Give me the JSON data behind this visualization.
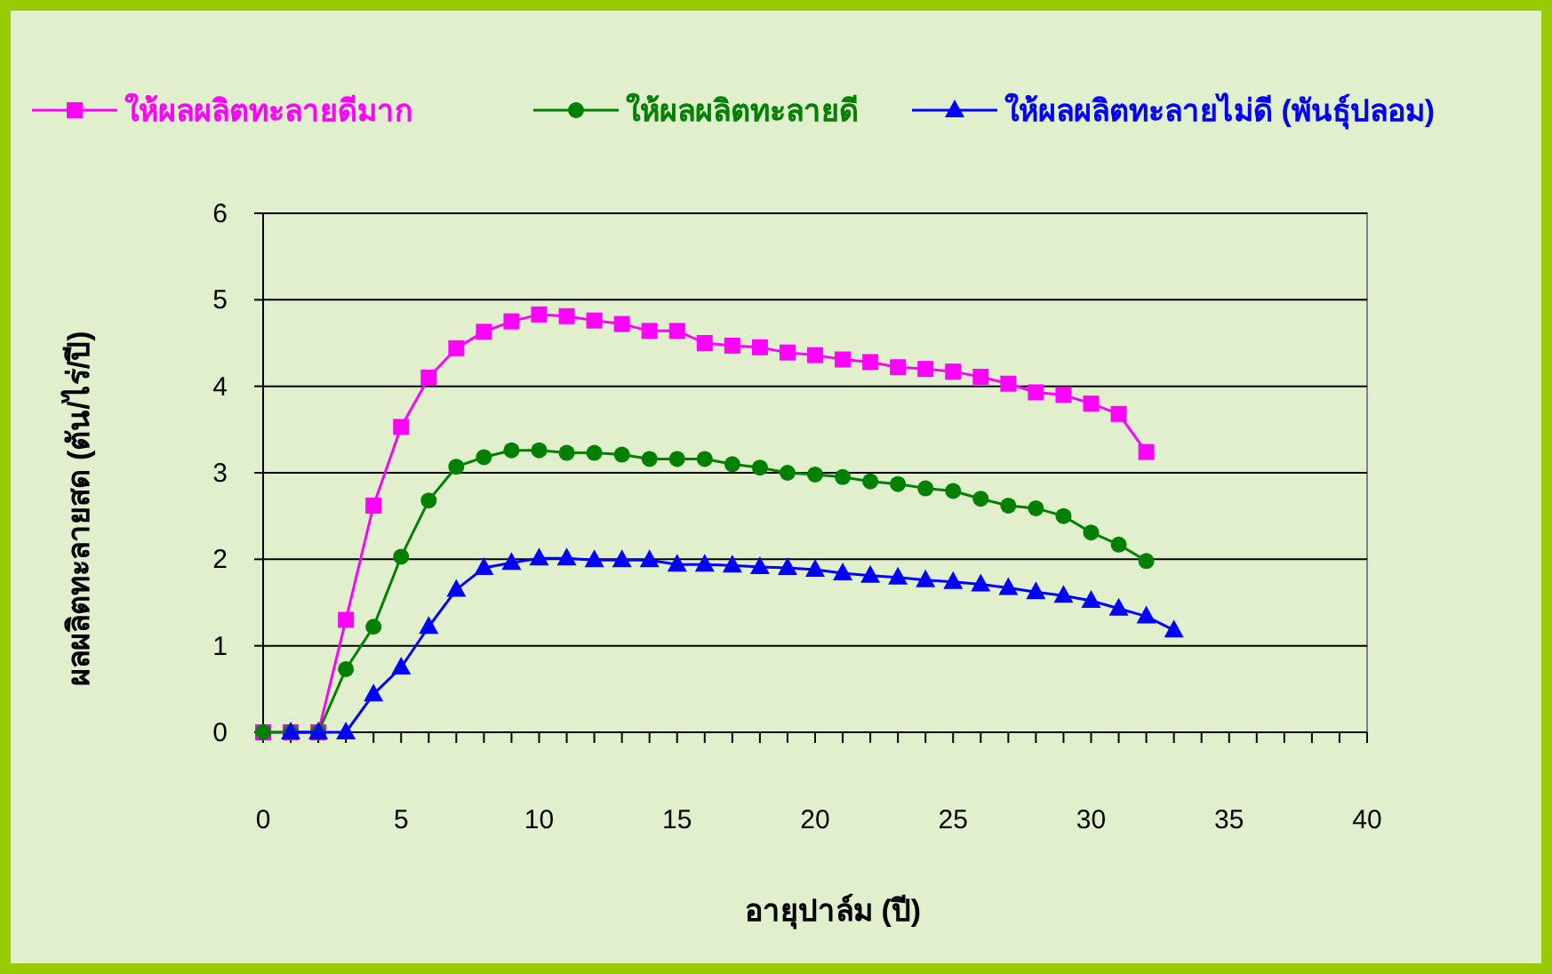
{
  "chart_data": {
    "type": "line",
    "xlabel": "อายุปาล์ม (ปี)",
    "ylabel": "ผลผลิตทะลายสด (ตัน/ไร่/ปี)",
    "x": [
      0,
      1,
      2,
      3,
      4,
      5,
      6,
      7,
      8,
      9,
      10,
      11,
      12,
      13,
      14,
      15,
      16,
      17,
      18,
      19,
      20,
      21,
      22,
      23,
      24,
      25,
      26,
      27,
      28,
      29,
      30,
      31,
      32
    ],
    "series": [
      {
        "name": "ให้ผลผลิตทะลายดีมาก",
        "color": "#ff00ff",
        "marker": "square",
        "values": [
          0,
          0,
          0,
          1.3,
          2.62,
          3.53,
          4.1,
          4.44,
          4.63,
          4.75,
          4.83,
          4.81,
          4.76,
          4.72,
          4.64,
          4.64,
          4.5,
          4.47,
          4.45,
          4.39,
          4.36,
          4.31,
          4.28,
          4.22,
          4.2,
          4.17,
          4.11,
          4.03,
          3.93,
          3.9,
          3.8,
          3.68,
          3.24
        ]
      },
      {
        "name": "ให้ผลผลิตทะลายดี",
        "color": "#008000",
        "marker": "circle",
        "values": [
          0,
          0,
          0,
          0.73,
          1.22,
          2.03,
          2.68,
          3.07,
          3.18,
          3.26,
          3.26,
          3.23,
          3.23,
          3.21,
          3.16,
          3.16,
          3.16,
          3.1,
          3.06,
          3.0,
          2.98,
          2.95,
          2.9,
          2.87,
          2.82,
          2.79,
          2.7,
          2.62,
          2.59,
          2.5,
          2.31,
          2.17,
          1.98
        ]
      },
      {
        "name": "ให้ผลผลิตทะลายไม่ดี (พันธุ์ปลอม)",
        "color": "#0000ff",
        "marker": "triangle",
        "x": [
          1,
          2,
          3,
          4,
          5,
          6,
          7,
          8,
          9,
          10,
          11,
          12,
          13,
          14,
          15,
          16,
          17,
          18,
          19,
          20,
          21,
          22,
          23,
          24,
          25,
          26,
          27,
          28,
          29,
          30,
          31,
          32,
          33
        ],
        "values": [
          0,
          0,
          0,
          0.44,
          0.75,
          1.22,
          1.65,
          1.9,
          1.96,
          2.01,
          2.01,
          1.99,
          1.99,
          1.99,
          1.94,
          1.94,
          1.93,
          1.91,
          1.9,
          1.88,
          1.84,
          1.81,
          1.79,
          1.76,
          1.74,
          1.71,
          1.67,
          1.62,
          1.58,
          1.52,
          1.43,
          1.34,
          1.18
        ]
      }
    ],
    "xlim": [
      0,
      40
    ],
    "xticks": [
      0,
      {
        "value": 1,
        "label": null
      },
      {
        "value": 2,
        "label": null
      },
      {
        "value": 3,
        "label": null
      },
      {
        "value": 4,
        "label": null
      },
      5,
      {
        "value": 6,
        "label": null
      },
      {
        "value": 7,
        "label": null
      },
      {
        "value": 8,
        "label": null
      },
      {
        "value": 9,
        "label": null
      },
      10,
      {
        "value": 11,
        "label": null
      },
      {
        "value": 12,
        "label": null
      },
      {
        "value": 13,
        "label": null
      },
      {
        "value": 14,
        "label": null
      },
      15,
      {
        "value": 16,
        "label": null
      },
      {
        "value": 17,
        "label": null
      },
      {
        "value": 18,
        "label": null
      },
      {
        "value": 19,
        "label": null
      },
      20,
      {
        "value": 21,
        "label": null
      },
      {
        "value": 22,
        "label": null
      },
      {
        "value": 23,
        "label": null
      },
      {
        "value": 24,
        "label": null
      },
      25,
      {
        "value": 26,
        "label": null
      },
      {
        "value": 27,
        "label": null
      },
      {
        "value": 28,
        "label": null
      },
      {
        "value": 29,
        "label": null
      },
      30,
      {
        "value": 31,
        "label": null
      },
      {
        "value": 32,
        "label": null
      },
      {
        "value": 33,
        "label": null
      },
      {
        "value": 34,
        "label": null
      },
      35,
      {
        "value": 36,
        "label": null
      },
      {
        "value": 37,
        "label": null
      },
      {
        "value": 38,
        "label": null
      },
      {
        "value": 39,
        "label": null
      },
      40
    ],
    "ylim": [
      0,
      6
    ],
    "yticks": [
      0,
      1,
      2,
      3,
      4,
      5,
      6
    ],
    "grid": "y",
    "legend": "top",
    "line_style": "solid"
  }
}
